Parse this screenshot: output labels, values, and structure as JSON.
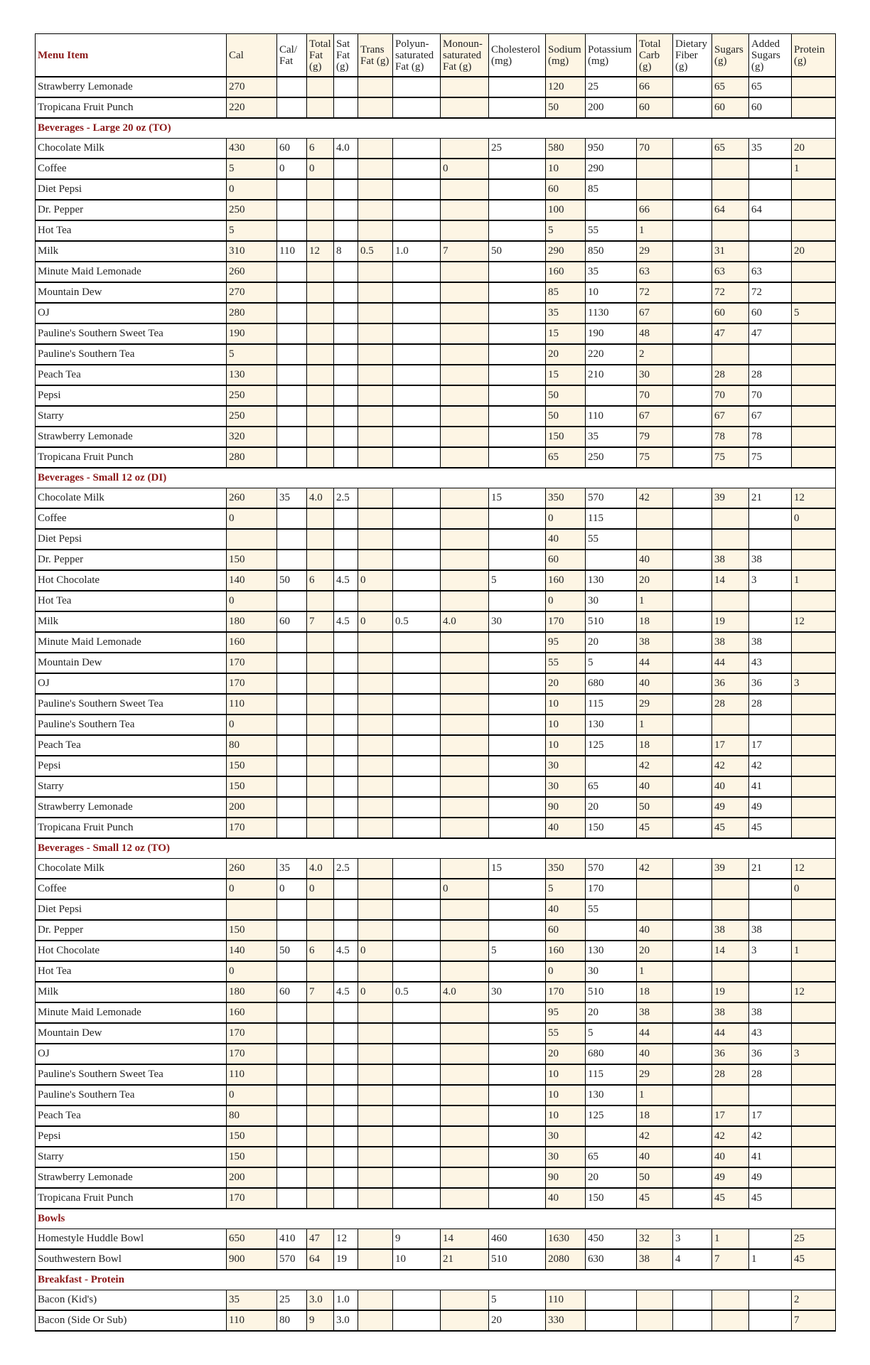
{
  "header": {
    "columns": [
      "Menu Item",
      "Cal",
      "Cal/ Fat",
      "Total Fat (g)",
      "Sat Fat (g)",
      "Trans Fat (g)",
      "Polyun-saturated Fat (g)",
      "Monoun-saturated Fat (g)",
      "Cholesterol (mg)",
      "Sodium (mg)",
      "Potassium (mg)",
      "Total Carb (g)",
      "Dietary Fiber (g)",
      "Sugars (g)",
      "Added Sugars (g)",
      "Protein (g)"
    ]
  },
  "table": {
    "rows": [
      [
        "Strawberry Lemonade",
        "270",
        null,
        null,
        null,
        null,
        null,
        null,
        null,
        "120",
        "25",
        "66",
        null,
        "65",
        "65",
        null
      ],
      [
        "Tropicana Fruit Punch",
        "220",
        null,
        null,
        null,
        null,
        null,
        null,
        null,
        "50",
        "200",
        "60",
        null,
        "60",
        "60",
        null
      ],
      {
        "section": "Beverages - Large 20 oz (TO)"
      },
      [
        "Chocolate Milk",
        "430",
        "60",
        "6",
        "4.0",
        null,
        null,
        null,
        "25",
        "580",
        "950",
        "70",
        null,
        "65",
        "35",
        "20"
      ],
      [
        "Coffee",
        "5",
        "0",
        "0",
        null,
        null,
        null,
        "0",
        null,
        "10",
        "290",
        null,
        null,
        null,
        null,
        "1"
      ],
      [
        "Diet Pepsi",
        "0",
        null,
        null,
        null,
        null,
        null,
        null,
        null,
        "60",
        "85",
        null,
        null,
        null,
        null,
        null
      ],
      [
        "Dr. Pepper",
        "250",
        null,
        null,
        null,
        null,
        null,
        null,
        null,
        "100",
        null,
        "66",
        null,
        "64",
        "64",
        null
      ],
      [
        "Hot Tea",
        "5",
        null,
        null,
        null,
        null,
        null,
        null,
        null,
        "5",
        "55",
        "1",
        null,
        null,
        null,
        null
      ],
      [
        "Milk",
        "310",
        "110",
        "12",
        "8",
        "0.5",
        "1.0",
        "7",
        "50",
        "290",
        "850",
        "29",
        null,
        "31",
        null,
        "20"
      ],
      [
        "Minute Maid Lemonade",
        "260",
        null,
        null,
        null,
        null,
        null,
        null,
        null,
        "160",
        "35",
        "63",
        null,
        "63",
        "63",
        null
      ],
      [
        "Mountain Dew",
        "270",
        null,
        null,
        null,
        null,
        null,
        null,
        null,
        "85",
        "10",
        "72",
        null,
        "72",
        "72",
        null
      ],
      [
        "OJ",
        "280",
        null,
        null,
        null,
        null,
        null,
        null,
        null,
        "35",
        "1130",
        "67",
        null,
        "60",
        "60",
        "5"
      ],
      [
        "Pauline's Southern Sweet Tea",
        "190",
        null,
        null,
        null,
        null,
        null,
        null,
        null,
        "15",
        "190",
        "48",
        null,
        "47",
        "47",
        null
      ],
      [
        "Pauline's Southern Tea",
        "5",
        null,
        null,
        null,
        null,
        null,
        null,
        null,
        "20",
        "220",
        "2",
        null,
        null,
        null,
        null
      ],
      [
        "Peach Tea",
        "130",
        null,
        null,
        null,
        null,
        null,
        null,
        null,
        "15",
        "210",
        "30",
        null,
        "28",
        "28",
        null
      ],
      [
        "Pepsi",
        "250",
        null,
        null,
        null,
        null,
        null,
        null,
        null,
        "50",
        null,
        "70",
        null,
        "70",
        "70",
        null
      ],
      [
        "Starry",
        "250",
        null,
        null,
        null,
        null,
        null,
        null,
        null,
        "50",
        "110",
        "67",
        null,
        "67",
        "67",
        null
      ],
      [
        "Strawberry Lemonade",
        "320",
        null,
        null,
        null,
        null,
        null,
        null,
        null,
        "150",
        "35",
        "79",
        null,
        "78",
        "78",
        null
      ],
      [
        "Tropicana Fruit Punch",
        "280",
        null,
        null,
        null,
        null,
        null,
        null,
        null,
        "65",
        "250",
        "75",
        null,
        "75",
        "75",
        null
      ],
      {
        "section": "Beverages - Small 12 oz (DI)"
      },
      [
        "Chocolate Milk",
        "260",
        "35",
        "4.0",
        "2.5",
        null,
        null,
        null,
        "15",
        "350",
        "570",
        "42",
        null,
        "39",
        "21",
        "12"
      ],
      [
        "Coffee",
        "0",
        null,
        null,
        null,
        null,
        null,
        null,
        null,
        "0",
        "115",
        null,
        null,
        null,
        null,
        "0"
      ],
      [
        "Diet Pepsi",
        null,
        null,
        null,
        null,
        null,
        null,
        null,
        null,
        "40",
        "55",
        null,
        null,
        null,
        null,
        null
      ],
      [
        "Dr. Pepper",
        "150",
        null,
        null,
        null,
        null,
        null,
        null,
        null,
        "60",
        null,
        "40",
        null,
        "38",
        "38",
        null
      ],
      [
        "Hot Chocolate",
        "140",
        "50",
        "6",
        "4.5",
        "0",
        null,
        null,
        "5",
        "160",
        "130",
        "20",
        null,
        "14",
        "3",
        "1"
      ],
      [
        "Hot Tea",
        "0",
        null,
        null,
        null,
        null,
        null,
        null,
        null,
        "0",
        "30",
        "1",
        null,
        null,
        null,
        null
      ],
      [
        "Milk",
        "180",
        "60",
        "7",
        "4.5",
        "0",
        "0.5",
        "4.0",
        "30",
        "170",
        "510",
        "18",
        null,
        "19",
        null,
        "12"
      ],
      [
        "Minute Maid Lemonade",
        "160",
        null,
        null,
        null,
        null,
        null,
        null,
        null,
        "95",
        "20",
        "38",
        null,
        "38",
        "38",
        null
      ],
      [
        "Mountain Dew",
        "170",
        null,
        null,
        null,
        null,
        null,
        null,
        null,
        "55",
        "5",
        "44",
        null,
        "44",
        "43",
        null
      ],
      [
        "OJ",
        "170",
        null,
        null,
        null,
        null,
        null,
        null,
        null,
        "20",
        "680",
        "40",
        null,
        "36",
        "36",
        "3"
      ],
      [
        "Pauline's Southern Sweet Tea",
        "110",
        null,
        null,
        null,
        null,
        null,
        null,
        null,
        "10",
        "115",
        "29",
        null,
        "28",
        "28",
        null
      ],
      [
        "Pauline's Southern Tea",
        "0",
        null,
        null,
        null,
        null,
        null,
        null,
        null,
        "10",
        "130",
        "1",
        null,
        null,
        null,
        null
      ],
      [
        "Peach Tea",
        "80",
        null,
        null,
        null,
        null,
        null,
        null,
        null,
        "10",
        "125",
        "18",
        null,
        "17",
        "17",
        null
      ],
      [
        "Pepsi",
        "150",
        null,
        null,
        null,
        null,
        null,
        null,
        null,
        "30",
        null,
        "42",
        null,
        "42",
        "42",
        null
      ],
      [
        "Starry",
        "150",
        null,
        null,
        null,
        null,
        null,
        null,
        null,
        "30",
        "65",
        "40",
        null,
        "40",
        "41",
        null
      ],
      [
        "Strawberry Lemonade",
        "200",
        null,
        null,
        null,
        null,
        null,
        null,
        null,
        "90",
        "20",
        "50",
        null,
        "49",
        "49",
        null
      ],
      [
        "Tropicana Fruit Punch",
        "170",
        null,
        null,
        null,
        null,
        null,
        null,
        null,
        "40",
        "150",
        "45",
        null,
        "45",
        "45",
        null
      ],
      {
        "section": "Beverages - Small 12 oz (TO)"
      },
      [
        "Chocolate Milk",
        "260",
        "35",
        "4.0",
        "2.5",
        null,
        null,
        null,
        "15",
        "350",
        "570",
        "42",
        null,
        "39",
        "21",
        "12"
      ],
      [
        "Coffee",
        "0",
        "0",
        "0",
        null,
        null,
        null,
        "0",
        null,
        "5",
        "170",
        null,
        null,
        null,
        null,
        "0"
      ],
      [
        "Diet Pepsi",
        null,
        null,
        null,
        null,
        null,
        null,
        null,
        null,
        "40",
        "55",
        null,
        null,
        null,
        null,
        null
      ],
      [
        "Dr. Pepper",
        "150",
        null,
        null,
        null,
        null,
        null,
        null,
        null,
        "60",
        null,
        "40",
        null,
        "38",
        "38",
        null
      ],
      [
        "Hot Chocolate",
        "140",
        "50",
        "6",
        "4.5",
        "0",
        null,
        null,
        "5",
        "160",
        "130",
        "20",
        null,
        "14",
        "3",
        "1"
      ],
      [
        "Hot Tea",
        "0",
        null,
        null,
        null,
        null,
        null,
        null,
        null,
        "0",
        "30",
        "1",
        null,
        null,
        null,
        null
      ],
      [
        "Milk",
        "180",
        "60",
        "7",
        "4.5",
        "0",
        "0.5",
        "4.0",
        "30",
        "170",
        "510",
        "18",
        null,
        "19",
        null,
        "12"
      ],
      [
        "Minute Maid Lemonade",
        "160",
        null,
        null,
        null,
        null,
        null,
        null,
        null,
        "95",
        "20",
        "38",
        null,
        "38",
        "38",
        null
      ],
      [
        "Mountain Dew",
        "170",
        null,
        null,
        null,
        null,
        null,
        null,
        null,
        "55",
        "5",
        "44",
        null,
        "44",
        "43",
        null
      ],
      [
        "OJ",
        "170",
        null,
        null,
        null,
        null,
        null,
        null,
        null,
        "20",
        "680",
        "40",
        null,
        "36",
        "36",
        "3"
      ],
      [
        "Pauline's Southern Sweet Tea",
        "110",
        null,
        null,
        null,
        null,
        null,
        null,
        null,
        "10",
        "115",
        "29",
        null,
        "28",
        "28",
        null
      ],
      [
        "Pauline's Southern Tea",
        "0",
        null,
        null,
        null,
        null,
        null,
        null,
        null,
        "10",
        "130",
        "1",
        null,
        null,
        null,
        null
      ],
      [
        "Peach Tea",
        "80",
        null,
        null,
        null,
        null,
        null,
        null,
        null,
        "10",
        "125",
        "18",
        null,
        "17",
        "17",
        null
      ],
      [
        "Pepsi",
        "150",
        null,
        null,
        null,
        null,
        null,
        null,
        null,
        "30",
        null,
        "42",
        null,
        "42",
        "42",
        null
      ],
      [
        "Starry",
        "150",
        null,
        null,
        null,
        null,
        null,
        null,
        null,
        "30",
        "65",
        "40",
        null,
        "40",
        "41",
        null
      ],
      [
        "Strawberry Lemonade",
        "200",
        null,
        null,
        null,
        null,
        null,
        null,
        null,
        "90",
        "20",
        "50",
        null,
        "49",
        "49",
        null
      ],
      [
        "Tropicana Fruit Punch",
        "170",
        null,
        null,
        null,
        null,
        null,
        null,
        null,
        "40",
        "150",
        "45",
        null,
        "45",
        "45",
        null
      ],
      {
        "section": "Bowls"
      },
      [
        "Homestyle Huddle Bowl",
        "650",
        "410",
        "47",
        "12",
        null,
        "9",
        "14",
        "460",
        "1630",
        "450",
        "32",
        "3",
        "1",
        null,
        "25"
      ],
      [
        "Southwestern Bowl",
        "900",
        "570",
        "64",
        "19",
        null,
        "10",
        "21",
        "510",
        "2080",
        "630",
        "38",
        "4",
        "7",
        "1",
        "45"
      ],
      {
        "section": "Breakfast - Protein"
      },
      [
        "Bacon (Kid's)",
        "35",
        "25",
        "3.0",
        "1.0",
        null,
        null,
        null,
        "5",
        "110",
        null,
        null,
        null,
        null,
        null,
        "2"
      ],
      [
        "Bacon (Side Or Sub)",
        "110",
        "80",
        "9",
        "3.0",
        null,
        null,
        null,
        "20",
        "330",
        null,
        null,
        null,
        null,
        null,
        "7"
      ]
    ]
  }
}
